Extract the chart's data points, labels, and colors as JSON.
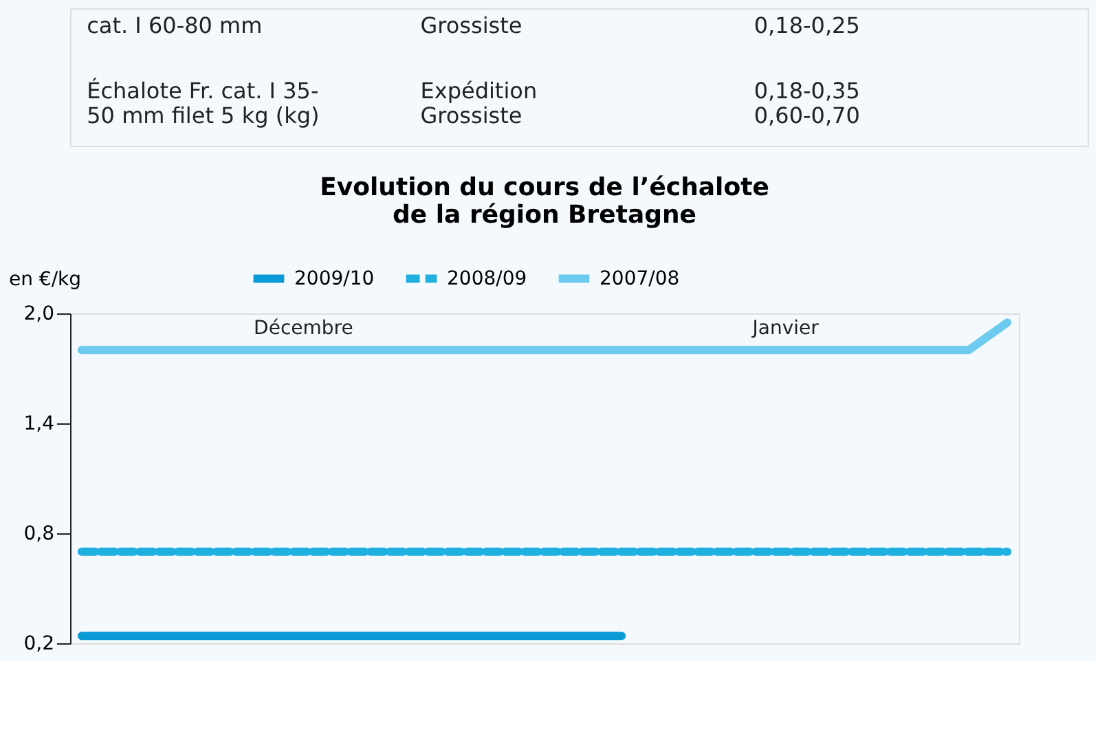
{
  "chart_data": [
    {
      "type": "other",
      "annotations": [
        "cat. I 60-80 mm",
        "Grossiste",
        "0,18-0,25",
        "Échalote Fr. cat. I 35-\n50 mm filet 5 kg (kg)",
        "Expédition\nGrossiste",
        "0,18-0,35\n0,60-0,70"
      ]
    },
    {
      "type": "line",
      "title": "Evolution du cours de l’échalote\nde la région Bretagne",
      "ylabel": "en €/kg",
      "categories": [
        null,
        null,
        null,
        null,
        null,
        null,
        null,
        null,
        null,
        null,
        null,
        null,
        null,
        null,
        null,
        null,
        null,
        null,
        null,
        null,
        null,
        null,
        null,
        null,
        null
      ],
      "series": [
        {
          "name": "2009/10",
          "color": "#0a9ad6",
          "line_style": "solid",
          "values": [
            0.24,
            0.24,
            0.24,
            0.24,
            0.24,
            0.24,
            0.24,
            0.24,
            0.24,
            0.24,
            0.24,
            0.24,
            0.24,
            0.24,
            0.24,
            null,
            null,
            null,
            null,
            null,
            null,
            null,
            null,
            null,
            null
          ]
        },
        {
          "name": "2008/09",
          "color": "#1fb0e0",
          "line_style": "dashed",
          "values": [
            0.7,
            0.7,
            0.7,
            0.7,
            0.7,
            0.7,
            0.7,
            0.7,
            0.7,
            0.7,
            0.7,
            0.7,
            0.7,
            0.7,
            0.7,
            0.7,
            0.7,
            0.7,
            0.7,
            0.7,
            0.7,
            0.7,
            0.7,
            0.7,
            0.7
          ]
        },
        {
          "name": "2007/08",
          "color": "#6ccbef",
          "line_style": "solid",
          "values": [
            1.8,
            1.8,
            1.8,
            1.8,
            1.8,
            1.8,
            1.8,
            1.8,
            1.8,
            1.8,
            1.8,
            1.8,
            1.8,
            1.8,
            1.8,
            1.8,
            1.8,
            1.8,
            1.8,
            1.8,
            1.8,
            1.8,
            1.8,
            1.8,
            1.95
          ]
        }
      ],
      "annotations": [
        "Décembre",
        "Janvier"
      ],
      "ylim": [
        0.2,
        2.0
      ],
      "yticks": [
        {
          "value": 0.2,
          "label": "0,2"
        },
        {
          "value": 0.8,
          "label": "0,8"
        },
        {
          "value": 1.4,
          "label": "1,4"
        },
        {
          "value": 2.0,
          "label": "2,0"
        }
      ],
      "grid": false,
      "legend": "top",
      "marker": "none"
    }
  ]
}
